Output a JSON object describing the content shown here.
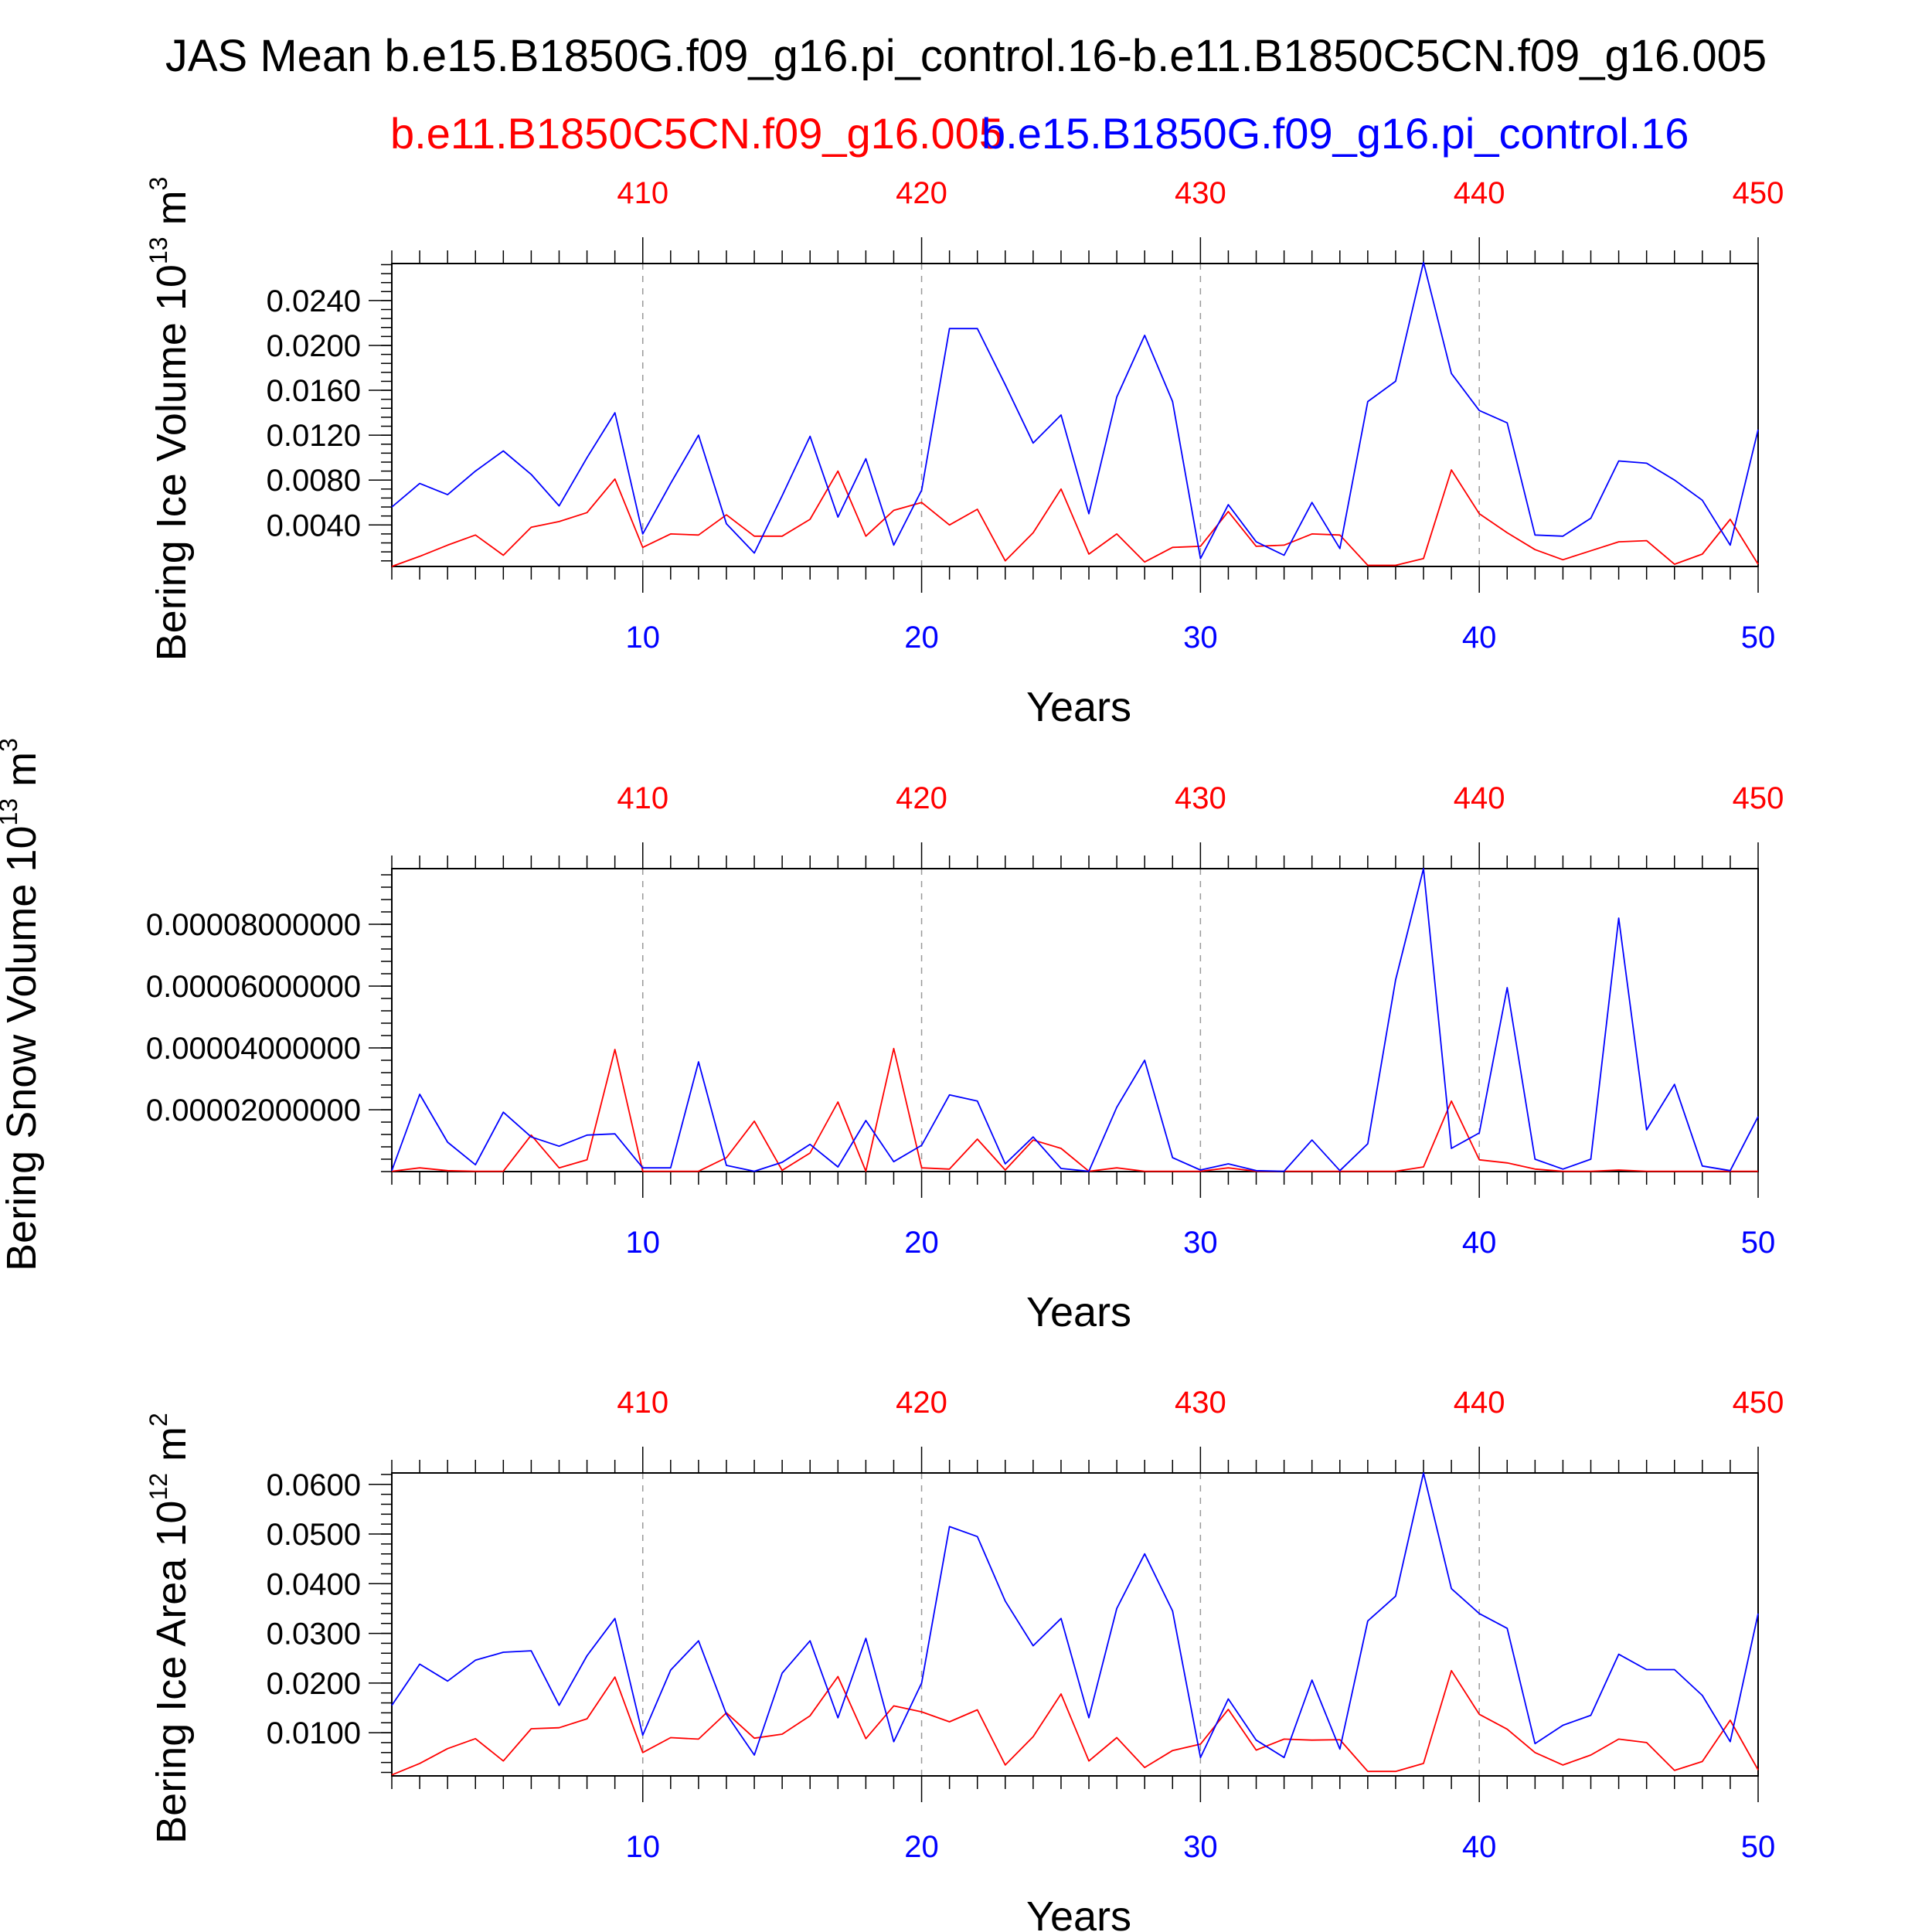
{
  "title": "JAS Mean b.e15.B1850G.f09_g16.pi_control.16-b.e11.B1850C5CN.f09_g16.005",
  "legend": {
    "red_label": "b.e11.B1850C5CN.f09_g16.005",
    "blue_label": "b.e15.B1850G.f09_g16.pi_control.16"
  },
  "colors": {
    "red": "#ff0000",
    "blue": "#0000ff",
    "grid": "#999999",
    "axis": "#000000"
  },
  "chart_data": [
    {
      "type": "line",
      "ylabel": "Bering Ice Volume 10",
      "ylabel_sup": "13",
      "ylabel_unit": " m",
      "ylabel_unit_sup": "3",
      "xlabel": "Years",
      "x_bottom_ticks": [
        "10",
        "20",
        "30",
        "40",
        "50"
      ],
      "x_top_ticks": [
        "410",
        "420",
        "430",
        "440",
        "450"
      ],
      "y_ticks": [
        "0.0040",
        "0.0080",
        "0.0120",
        "0.0160",
        "0.0200",
        "0.0240"
      ],
      "y_tick_values": [
        0.004,
        0.008,
        0.012,
        0.016,
        0.02,
        0.024
      ],
      "xlim": [
        1,
        50
      ],
      "ylim": [
        0.0003,
        0.0273
      ],
      "grid": "vertical dashed",
      "x": [
        1,
        2,
        3,
        4,
        5,
        6,
        7,
        8,
        9,
        10,
        11,
        12,
        13,
        14,
        15,
        16,
        17,
        18,
        19,
        20,
        21,
        22,
        23,
        24,
        25,
        26,
        27,
        28,
        29,
        30,
        31,
        32,
        33,
        34,
        35,
        36,
        37,
        38,
        39,
        40,
        41,
        42,
        43,
        44,
        45,
        46,
        47,
        48,
        49,
        50
      ],
      "series": [
        {
          "color": "red",
          "values": [
            0.0003,
            0.0012,
            0.0022,
            0.0031,
            0.0013,
            0.0038,
            0.0043,
            0.0051,
            0.0081,
            0.002,
            0.0032,
            0.0031,
            0.0049,
            0.003,
            0.003,
            0.0045,
            0.0088,
            0.003,
            0.0053,
            0.006,
            0.004,
            0.0054,
            0.0008,
            0.0033,
            0.0072,
            0.0014,
            0.0032,
            0.0007,
            0.002,
            0.0021,
            0.0052,
            0.0021,
            0.0022,
            0.0032,
            0.0031,
            0.0004,
            0.0004,
            0.001,
            0.0089,
            0.005,
            0.0033,
            0.0018,
            0.0009,
            0.0017,
            0.0025,
            0.0026,
            0.0005,
            0.0014,
            0.0045,
            0.0005
          ]
        },
        {
          "color": "blue",
          "values": [
            0.0056,
            0.0077,
            0.0067,
            0.0088,
            0.0106,
            0.0085,
            0.0057,
            0.01,
            0.014,
            0.0032,
            0.0077,
            0.012,
            0.0041,
            0.0015,
            0.0066,
            0.0119,
            0.0047,
            0.0099,
            0.0022,
            0.0071,
            0.0215,
            0.0215,
            0.0165,
            0.0113,
            0.0138,
            0.005,
            0.0154,
            0.0209,
            0.015,
            0.001,
            0.0058,
            0.0025,
            0.0013,
            0.006,
            0.0019,
            0.015,
            0.0168,
            0.0274,
            0.0175,
            0.0142,
            0.0131,
            0.0031,
            0.003,
            0.0046,
            0.0097,
            0.0095,
            0.008,
            0.0062,
            0.0022,
            0.0125
          ]
        }
      ]
    },
    {
      "type": "line",
      "ylabel": "Bering Snow Volume 10",
      "ylabel_sup": "13",
      "ylabel_unit": " m",
      "ylabel_unit_sup": "3",
      "xlabel": "Years",
      "x_bottom_ticks": [
        "10",
        "20",
        "30",
        "40",
        "50"
      ],
      "x_top_ticks": [
        "410",
        "420",
        "430",
        "440",
        "450"
      ],
      "y_ticks": [
        "0.00002000000",
        "0.00004000000",
        "0.00006000000",
        "0.00008000000"
      ],
      "y_tick_values": [
        2e-05,
        4e-05,
        6e-05,
        8e-05
      ],
      "xlim": [
        1,
        50
      ],
      "ylim": [
        0,
        9.8e-05
      ],
      "grid": "vertical dashed",
      "x": [
        1,
        2,
        3,
        4,
        5,
        6,
        7,
        8,
        9,
        10,
        11,
        12,
        13,
        14,
        15,
        16,
        17,
        18,
        19,
        20,
        21,
        22,
        23,
        24,
        25,
        26,
        27,
        28,
        29,
        30,
        31,
        32,
        33,
        34,
        35,
        36,
        37,
        38,
        39,
        40,
        41,
        42,
        43,
        44,
        45,
        46,
        47,
        48,
        49,
        50
      ],
      "series": [
        {
          "color": "red",
          "values": [
            1e-07,
            1.2e-06,
            3e-07,
            1e-07,
            1e-07,
            1.18e-05,
            1.2e-06,
            3.8e-06,
            3.95e-05,
            1e-07,
            1e-07,
            1e-07,
            4.5e-06,
            1.63e-05,
            4e-07,
            6e-06,
            2.25e-05,
            1e-07,
            3.98e-05,
            1.2e-06,
            8e-07,
            1.05e-05,
            5e-07,
            1.02e-05,
            7.5e-06,
            1e-07,
            1.2e-06,
            1e-07,
            1e-07,
            1e-07,
            1.2e-06,
            1e-07,
            1e-07,
            1e-07,
            1e-07,
            1e-07,
            1e-07,
            1.5e-06,
            2.28e-05,
            3.8e-06,
            2.8e-06,
            8e-07,
            1e-07,
            1e-07,
            5e-07,
            1e-07,
            1e-07,
            1e-07,
            1e-07,
            1e-07
          ]
        },
        {
          "color": "blue",
          "values": [
            3e-07,
            2.5e-05,
            9.5e-06,
            2.2e-06,
            1.92e-05,
            1.12e-05,
            8.2e-06,
            1.18e-05,
            1.22e-05,
            1.2e-06,
            1.2e-06,
            3.55e-05,
            2e-06,
            1e-07,
            3e-06,
            8.8e-06,
            1.5e-06,
            1.65e-05,
            3.2e-06,
            8.5e-06,
            2.48e-05,
            2.28e-05,
            2.5e-06,
            1.12e-05,
            1e-06,
            1e-07,
            2.08e-05,
            3.6e-05,
            4.5e-06,
            5e-07,
            2.5e-06,
            3e-07,
            1e-07,
            1.02e-05,
            3e-07,
            9e-06,
            6.2e-05,
            9.8e-05,
            7.5e-06,
            1.25e-05,
            5.95e-05,
            4e-06,
            8e-07,
            4e-06,
            8.2e-05,
            1.35e-05,
            2.82e-05,
            1.8e-06,
            3e-07,
            1.78e-05
          ]
        }
      ]
    },
    {
      "type": "line",
      "ylabel": "Bering Ice Area 10",
      "ylabel_sup": "12",
      "ylabel_unit": " m",
      "ylabel_unit_sup": "2",
      "xlabel": "Years",
      "x_bottom_ticks": [
        "10",
        "20",
        "30",
        "40",
        "50"
      ],
      "x_top_ticks": [
        "410",
        "420",
        "430",
        "440",
        "450"
      ],
      "y_ticks": [
        "0.0100",
        "0.0200",
        "0.0300",
        "0.0400",
        "0.0500",
        "0.0600"
      ],
      "y_tick_values": [
        0.01,
        0.02,
        0.03,
        0.04,
        0.05,
        0.06
      ],
      "xlim": [
        1,
        50
      ],
      "ylim": [
        0.0013,
        0.0623
      ],
      "grid": "vertical dashed",
      "x": [
        1,
        2,
        3,
        4,
        5,
        6,
        7,
        8,
        9,
        10,
        11,
        12,
        13,
        14,
        15,
        16,
        17,
        18,
        19,
        20,
        21,
        22,
        23,
        24,
        25,
        26,
        27,
        28,
        29,
        30,
        31,
        32,
        33,
        34,
        35,
        36,
        37,
        38,
        39,
        40,
        41,
        42,
        43,
        44,
        45,
        46,
        47,
        48,
        49,
        50
      ],
      "series": [
        {
          "color": "red",
          "values": [
            0.0015,
            0.0038,
            0.0068,
            0.0088,
            0.0043,
            0.0108,
            0.011,
            0.0128,
            0.0212,
            0.006,
            0.009,
            0.0087,
            0.014,
            0.0089,
            0.0097,
            0.0134,
            0.0213,
            0.0088,
            0.0154,
            0.0142,
            0.0122,
            0.0146,
            0.0035,
            0.0092,
            0.0178,
            0.0043,
            0.009,
            0.003,
            0.0064,
            0.0077,
            0.0147,
            0.0065,
            0.0087,
            0.0085,
            0.0086,
            0.0022,
            0.0022,
            0.0038,
            0.0225,
            0.0137,
            0.0107,
            0.006,
            0.0035,
            0.0055,
            0.0087,
            0.008,
            0.0024,
            0.0042,
            0.0125,
            0.0025
          ]
        },
        {
          "color": "blue",
          "values": [
            0.0155,
            0.0238,
            0.0204,
            0.0246,
            0.0262,
            0.0265,
            0.0155,
            0.0255,
            0.033,
            0.0095,
            0.0226,
            0.0285,
            0.0137,
            0.0055,
            0.022,
            0.0285,
            0.013,
            0.029,
            0.0082,
            0.02,
            0.0515,
            0.0495,
            0.0365,
            0.0275,
            0.033,
            0.013,
            0.035,
            0.046,
            0.0345,
            0.005,
            0.0168,
            0.0085,
            0.005,
            0.0206,
            0.0067,
            0.0325,
            0.0375,
            0.0623,
            0.039,
            0.034,
            0.031,
            0.0078,
            0.0115,
            0.0135,
            0.0258,
            0.0227,
            0.0227,
            0.0175,
            0.0082,
            0.034
          ]
        }
      ]
    }
  ]
}
